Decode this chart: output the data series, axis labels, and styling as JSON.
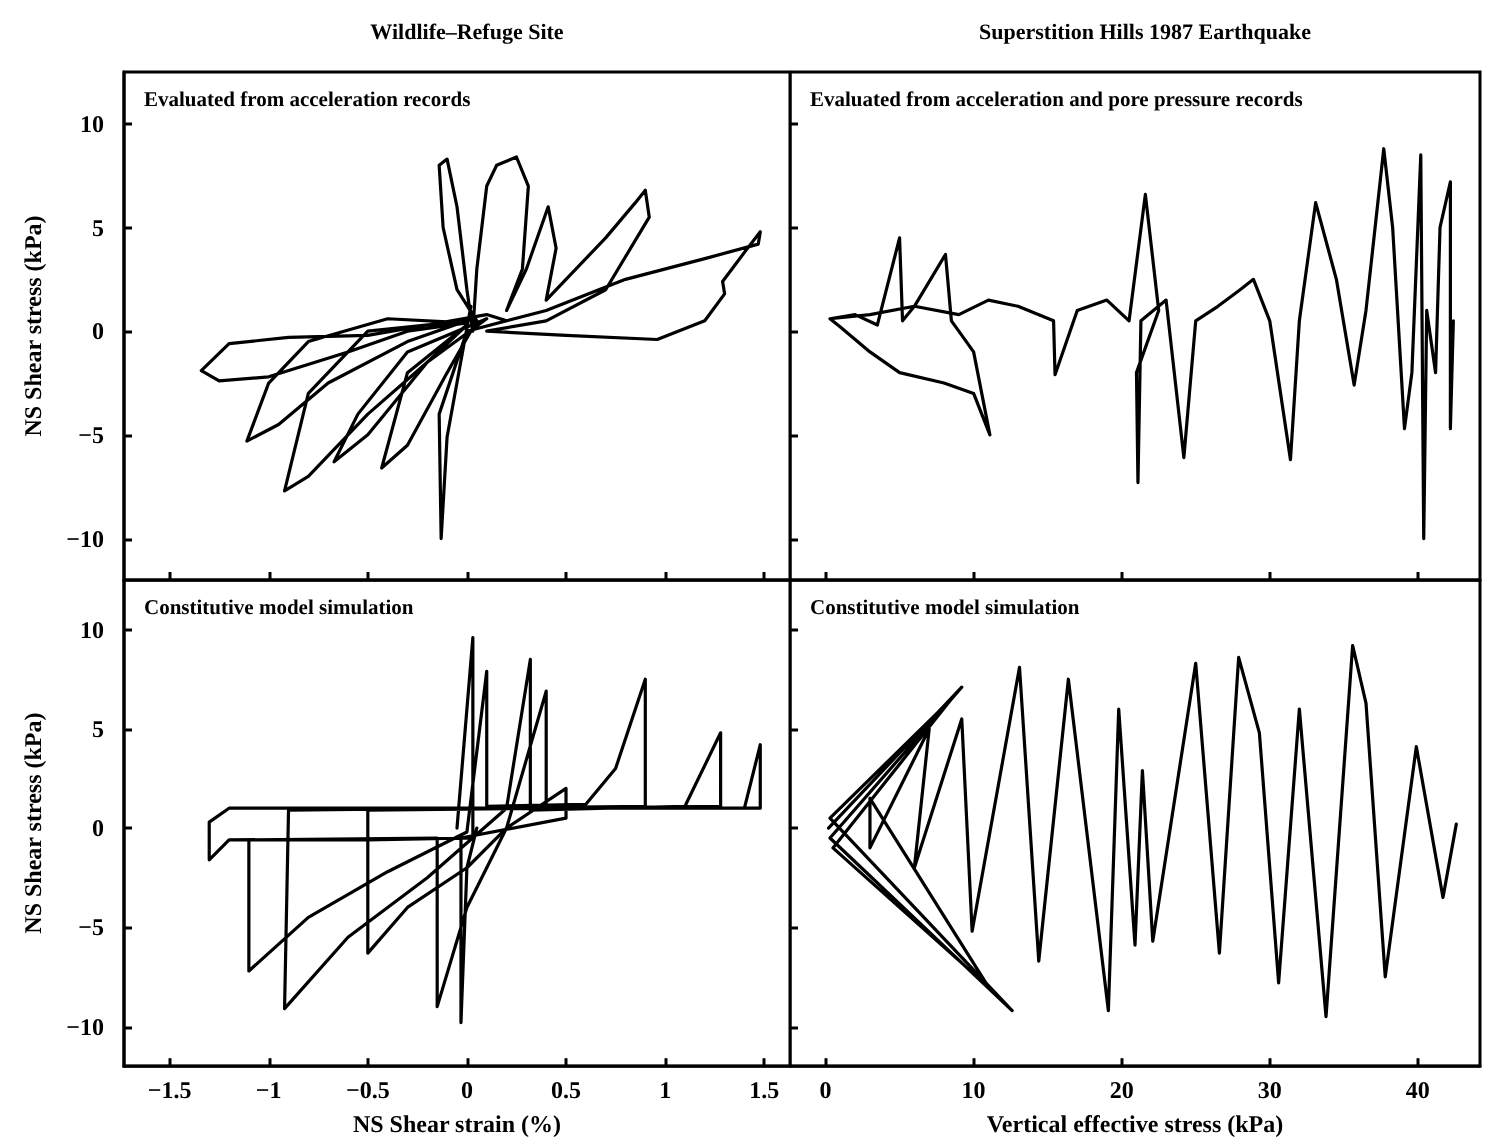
{
  "chart_data": [
    {
      "type": "line",
      "title": "Wildlife–Refuge Site",
      "ylabel": "NS Shear stress (kPa)",
      "annotations": [
        "Evaluated from acceleration records"
      ],
      "xlim": [
        -1.73,
        1.63
      ],
      "ylim": [
        -12,
        12.5
      ],
      "xticks": [
        -1.5,
        -1,
        -0.5,
        0,
        0.5,
        1,
        1.5
      ],
      "yticks": [
        -10,
        -5,
        0,
        5,
        10
      ],
      "tick_labels": "y",
      "marker": "none",
      "line_style": "solid",
      "series": [
        {
          "color": "#000000",
          "x": [
            0,
            0.2,
            0.1,
            -0.2,
            -0.5,
            -0.9,
            -1.2,
            -1.34,
            -1.25,
            -1.0,
            -0.6,
            -0.3,
            0.0,
            -0.4,
            -0.8,
            -1.0,
            -1.11,
            -0.95,
            -0.7,
            -0.3,
            0.0,
            -0.5,
            -0.8,
            -0.92,
            -0.8,
            -0.5,
            -0.2,
            0.1,
            -0.3,
            -0.55,
            -0.67,
            -0.5,
            -0.2,
            0.0,
            -0.3,
            -0.43,
            -0.3,
            -0.1,
            0.05,
            -0.05,
            -0.12,
            -0.14,
            -0.1,
            -0.05,
            0.0,
            0.03,
            0.05,
            0.1,
            0.15,
            0.25,
            0.31,
            0.28,
            0.2,
            0.3,
            0.41,
            0.45,
            0.4,
            0.5,
            0.7,
            0.85,
            0.9,
            0.92,
            0.7,
            0.4,
            0.1,
            0.5,
            0.96,
            1.2,
            1.3,
            1.29,
            1.4,
            1.48,
            1.47,
            1.2,
            0.8,
            0.4,
            0.0,
            -0.14,
            -0.13,
            -0.1,
            0.02
          ],
          "values": [
            0,
            0.5,
            0.8,
            0.3,
            -0.2,
            -0.3,
            -0.6,
            -1.9,
            -2.4,
            -2.2,
            -1.0,
            0.0,
            0.4,
            0.6,
            -0.5,
            -2.5,
            -5.3,
            -4.5,
            -2.5,
            -0.5,
            0.5,
            0.0,
            -3.0,
            -7.7,
            -7.0,
            -4.0,
            -1.5,
            0.6,
            -1.0,
            -4.0,
            -6.3,
            -5.0,
            -1.5,
            0.3,
            -2.0,
            -6.6,
            -5.5,
            -2.0,
            0.5,
            2.0,
            5.0,
            8.0,
            8.3,
            6.0,
            2.0,
            0.0,
            3.0,
            7.0,
            8.0,
            8.4,
            7.0,
            3.0,
            1.0,
            3.0,
            6.0,
            4.0,
            1.5,
            2.5,
            4.5,
            6.2,
            6.8,
            5.5,
            2.0,
            0.5,
            0.0,
            -0.2,
            -0.4,
            0.5,
            1.8,
            2.4,
            3.8,
            4.8,
            4.2,
            3.5,
            2.5,
            1.0,
            0.0,
            -4.0,
            -10.0,
            -5.1,
            1.2
          ]
        }
      ]
    },
    {
      "type": "line",
      "title": "Superstition Hills 1987 Earthquake",
      "annotations": [
        "Evaluated from acceleration and pore pressure records"
      ],
      "xlim": [
        -2.4,
        44.2
      ],
      "ylim": [
        -12,
        12.5
      ],
      "xticks": [
        0,
        10,
        20,
        30,
        40
      ],
      "yticks": [
        -10,
        -5,
        0,
        5,
        10
      ],
      "tick_labels": false,
      "marker": "none",
      "line_style": "solid",
      "series": [
        {
          "color": "#000000",
          "x": [
            0.3,
            2,
            3.5,
            5,
            5.2,
            6,
            8.1,
            8.5,
            9,
            10,
            11.1,
            10,
            8,
            5,
            3,
            1,
            0.3,
            3,
            6,
            9,
            11,
            13,
            15.4,
            15.5,
            17,
            19,
            20.5,
            21.6,
            22.5,
            21,
            21.1,
            21.3,
            23,
            24.2,
            25,
            26.5,
            28,
            28.9,
            30,
            31.4,
            32,
            33.1,
            34.5,
            35.7,
            36.5,
            37.7,
            38.3,
            39.1,
            39.6,
            40.2,
            40.4,
            40.6,
            41.2,
            41.5,
            42.2,
            42.2,
            42.4
          ],
          "values": [
            0.6,
            0.8,
            0.3,
            4.5,
            0.5,
            1.2,
            3.7,
            0.5,
            0.0,
            -1.0,
            -5.0,
            -3.0,
            -2.5,
            -2.0,
            -1.0,
            0.2,
            0.6,
            0.8,
            1.2,
            0.8,
            1.5,
            1.2,
            0.5,
            -2.1,
            1.0,
            1.5,
            0.5,
            6.6,
            1.0,
            -2.0,
            -7.3,
            0.5,
            1.5,
            -6.1,
            0.5,
            1.2,
            2.0,
            2.5,
            0.5,
            -6.2,
            0.5,
            6.2,
            2.5,
            -2.6,
            1.0,
            8.8,
            5.0,
            -4.7,
            -2.0,
            8.5,
            -10.0,
            1.0,
            -2.0,
            5.0,
            7.2,
            -4.7,
            0.5
          ]
        }
      ]
    },
    {
      "type": "line",
      "xlabel": "NS Shear strain (%)",
      "ylabel": "NS Shear stress (kPa)",
      "annotations": [
        "Constitutive model simulation"
      ],
      "xlim": [
        -1.73,
        1.63
      ],
      "ylim": [
        -12,
        12.5
      ],
      "xticks": [
        -1.5,
        -1,
        -0.5,
        0,
        0.5,
        1,
        1.5
      ],
      "yticks": [
        -10,
        -5,
        0,
        5,
        10
      ],
      "marker": "none",
      "line_style": "solid",
      "series": [
        {
          "color": "#000000",
          "x": [
            -0.05,
            0.03,
            0.03,
            -0.5,
            -1.1,
            -1.1,
            -0.8,
            -0.4,
            0.0,
            0.1,
            0.1,
            0.6,
            0.75,
            0.9,
            0.9,
            -0.9,
            -0.92,
            -0.6,
            -0.2,
            0.2,
            0.32,
            0.32,
            1.1,
            1.28,
            1.28,
            -0.5,
            -0.5,
            -0.3,
            0.0,
            0.2,
            0.4,
            0.4,
            1.4,
            1.48,
            1.48,
            -1.2,
            -1.3,
            -1.3,
            -1.2,
            -0.15,
            -0.15,
            0.0,
            0.2,
            0.5,
            0.5,
            -0.03,
            -0.03,
            0.0,
            0.05
          ],
          "values": [
            0,
            9.6,
            -0.5,
            -0.6,
            -0.6,
            -7.2,
            -4.5,
            -2.2,
            -0.2,
            7.9,
            1.1,
            1.2,
            3.0,
            7.5,
            1.1,
            0.9,
            -9.1,
            -5.5,
            -2.5,
            1.0,
            8.5,
            0.9,
            1.1,
            4.8,
            1.1,
            0.9,
            -6.3,
            -4.0,
            -2.0,
            0.0,
            6.9,
            1.0,
            1.0,
            4.2,
            1.0,
            1.0,
            0.3,
            -1.6,
            -0.6,
            -0.5,
            -9.0,
            -4.0,
            0.0,
            2.0,
            0.5,
            -0.5,
            -9.8,
            -2.0,
            0.0
          ]
        }
      ]
    },
    {
      "type": "line",
      "xlabel": "Vertical effective stress (kPa)",
      "annotations": [
        "Constitutive model simulation"
      ],
      "xlim": [
        -2.4,
        44.2
      ],
      "ylim": [
        -12,
        12.5
      ],
      "xticks": [
        0,
        10,
        20,
        30,
        40
      ],
      "yticks": [
        -10,
        -5,
        0,
        5,
        10
      ],
      "tick_labels": "x",
      "marker": "none",
      "line_style": "solid",
      "series": [
        {
          "color": "#000000",
          "x": [
            0.2,
            9.2,
            0.3,
            12.6,
            0.3,
            8.5,
            0.5,
            11,
            3,
            3,
            7,
            6,
            9.2,
            9.9,
            13.1,
            14.4,
            16.4,
            19.1,
            19.8,
            20.9,
            21.4,
            22.1,
            25,
            26.6,
            27.9,
            29.3,
            30.6,
            32,
            33.8,
            35.6,
            36.5,
            37.8,
            39.9,
            41.7,
            42.6
          ],
          "values": [
            0,
            7.1,
            -0.5,
            -9.2,
            0.5,
            6.5,
            -1.0,
            -8.0,
            1.5,
            -1.0,
            5.0,
            -2.0,
            5.5,
            -5.2,
            8.1,
            -6.7,
            7.5,
            -9.2,
            6.0,
            -5.9,
            2.9,
            -5.7,
            8.3,
            -6.3,
            8.6,
            4.8,
            -7.8,
            6.0,
            -9.5,
            9.2,
            6.3,
            -7.5,
            4.1,
            -3.5,
            0.2
          ]
        }
      ]
    }
  ]
}
